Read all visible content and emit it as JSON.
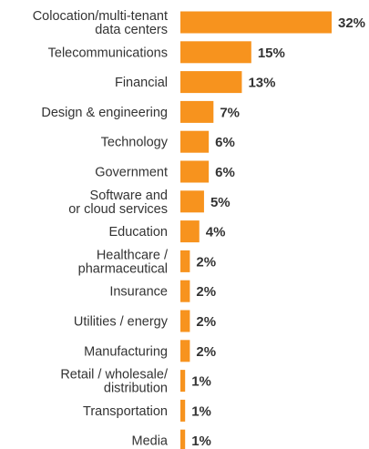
{
  "chart_data": {
    "type": "bar",
    "orientation": "horizontal",
    "categories": [
      "Colocation/multi-tenant data centers",
      "Telecommunications",
      "Financial",
      "Design & engineering",
      "Technology",
      "Government",
      "Software and or cloud services",
      "Education",
      "Healthcare / pharmaceutical",
      "Insurance",
      "Utilities / energy",
      "Manufacturing",
      "Retail / wholesale/ distribution",
      "Transportation",
      "Media"
    ],
    "category_lines": [
      [
        "Colocation/multi-tenant",
        "data centers"
      ],
      [
        "Telecommunications"
      ],
      [
        "Financial"
      ],
      [
        "Design & engineering"
      ],
      [
        "Technology"
      ],
      [
        "Government"
      ],
      [
        "Software and",
        "or cloud services"
      ],
      [
        "Education"
      ],
      [
        "Healthcare /",
        "pharmaceutical"
      ],
      [
        "Insurance"
      ],
      [
        "Utilities / energy"
      ],
      [
        "Manufacturing"
      ],
      [
        "Retail / wholesale/",
        "distribution"
      ],
      [
        "Transportation"
      ],
      [
        "Media"
      ]
    ],
    "values": [
      32,
      15,
      13,
      7,
      6,
      6,
      5,
      4,
      2,
      2,
      2,
      2,
      1,
      1,
      1
    ],
    "value_labels": [
      "32%",
      "15%",
      "13%",
      "7%",
      "6%",
      "6%",
      "5%",
      "4%",
      "2%",
      "2%",
      "2%",
      "2%",
      "1%",
      "1%",
      "1%"
    ],
    "title": "",
    "xlabel": "",
    "ylabel": "",
    "xlim": [
      0,
      32
    ],
    "grid": false,
    "legend": "none",
    "bar_color": "#F7931E",
    "text_color": "#333333"
  }
}
